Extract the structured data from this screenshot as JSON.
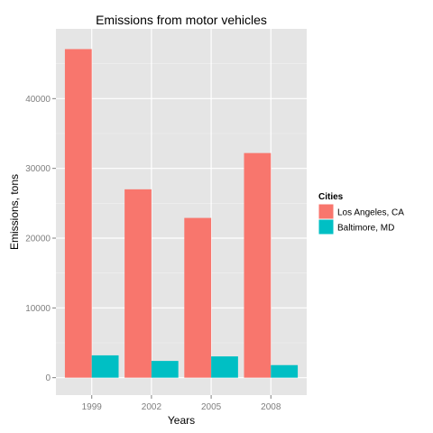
{
  "chart_data": {
    "type": "bar",
    "title": "Emissions from motor vehicles",
    "xlabel": "Years",
    "ylabel": "Emissions, tons",
    "categories": [
      "1999",
      "2002",
      "2005",
      "2008"
    ],
    "series": [
      {
        "name": "Los Angeles, CA",
        "color": "#F8766D",
        "values": [
          47100,
          27000,
          22900,
          32200
        ]
      },
      {
        "name": "Baltimore, MD",
        "color": "#00BFC4",
        "values": [
          3200,
          2400,
          3050,
          1800
        ]
      }
    ],
    "yticks": [
      0,
      10000,
      20000,
      30000,
      40000
    ],
    "ytick_labels": [
      "0",
      "10000",
      "20000",
      "30000",
      "40000"
    ],
    "ylim": [
      -2500,
      50000
    ],
    "grid": true,
    "legend": {
      "title": "Cities",
      "placement": "right"
    },
    "colors": {
      "panel_background": "#E5E5E5",
      "grid_major": "#FFFFFF",
      "grid_minor": "#F2F2F2",
      "tick_label": "#7F7F7F"
    }
  }
}
